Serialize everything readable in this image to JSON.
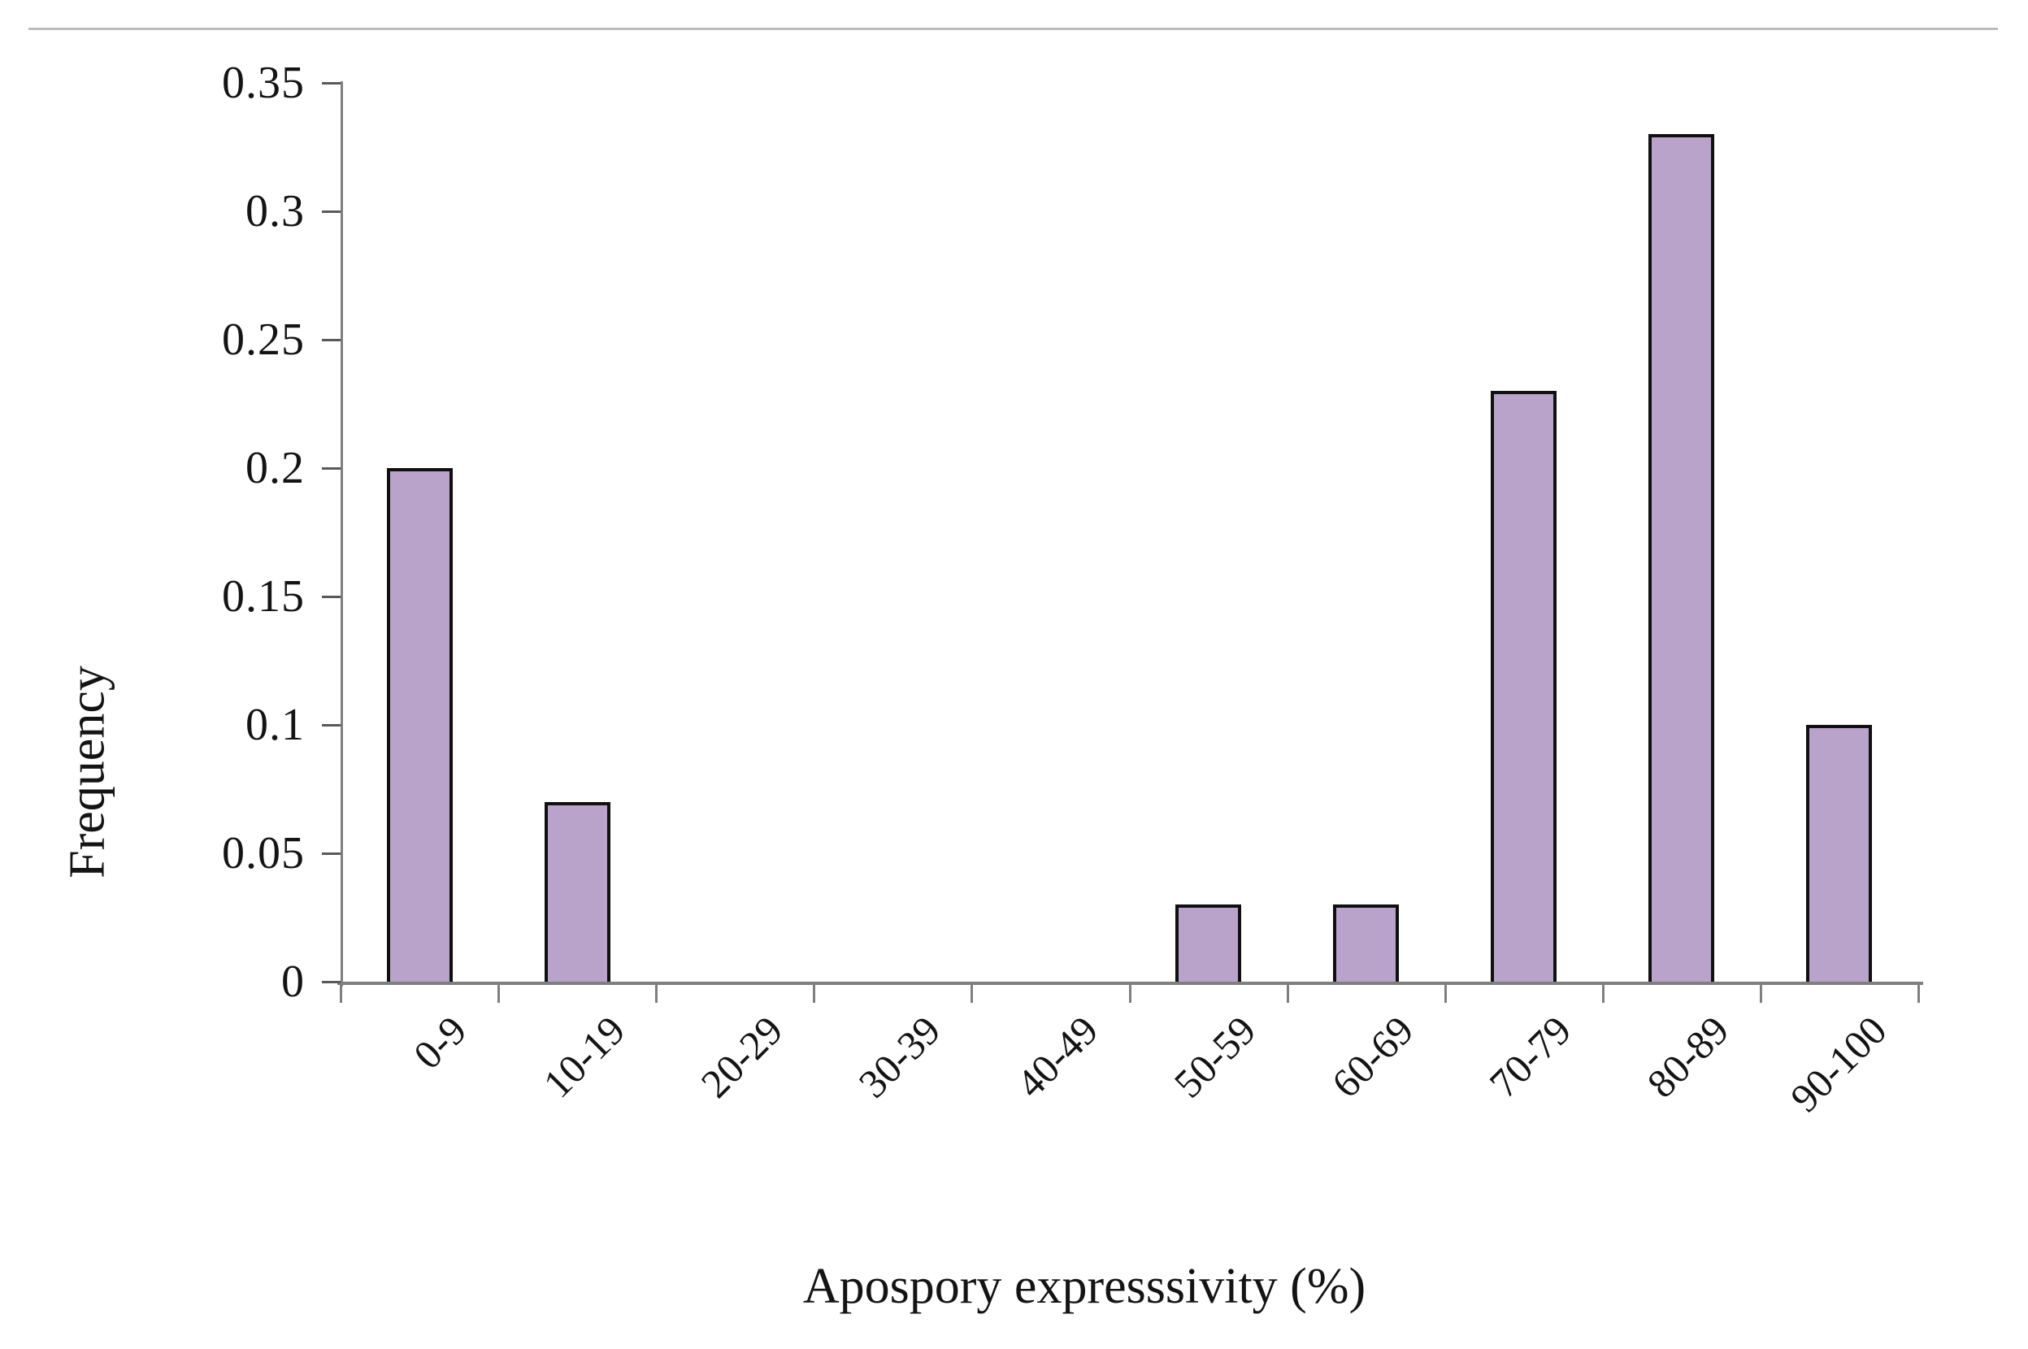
{
  "chart_data": {
    "type": "bar",
    "title": "",
    "categories": [
      "0-9",
      "10-19",
      "20-29",
      "30-39",
      "40-49",
      "50-59",
      "60-69",
      "70-79",
      "80-89",
      "90-100"
    ],
    "values": [
      0.2,
      0.07,
      0,
      0,
      0,
      0.03,
      0.03,
      0.23,
      0.33,
      0.1
    ],
    "xlabel": "Apospory expresssivity (%)",
    "ylabel": "Frequency",
    "ylim": [
      0,
      0.35
    ],
    "ytick_step": 0.05,
    "ytick_labels": [
      "0",
      "0.05",
      "0.1",
      "0.15",
      "0.2",
      "0.25",
      "0.3",
      "0.35"
    ],
    "grid": false,
    "legend": false,
    "bar_color": "#b9a3cb",
    "bar_border_color": "#101010",
    "axis_color": "#7f7f7f",
    "tick_color": "#595959",
    "text_color": "#141414"
  }
}
